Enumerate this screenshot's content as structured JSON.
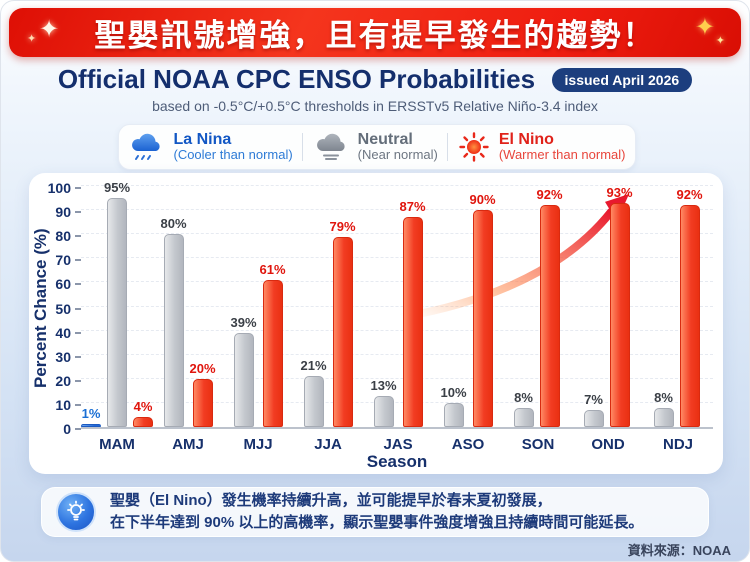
{
  "banner": {
    "title": "聖嬰訊號增強，且有提早發生的趨勢！",
    "sparkle": "✦"
  },
  "header": {
    "title": "Official NOAA CPC ENSO Probabilities",
    "badge": "issued April 2026",
    "subtitle": "based on -0.5°C/+0.5°C thresholds in ERSSTv5 Relative Niño-3.4 index"
  },
  "legend": {
    "items": [
      {
        "icon": "rain-cloud-icon",
        "name": "La Nina",
        "desc": "(Cooler than normal)",
        "color": "#1257c4"
      },
      {
        "icon": "cloud-icon",
        "name": "Neutral",
        "desc": "(Near normal)",
        "color": "#646e7a"
      },
      {
        "icon": "sun-icon",
        "name": "El Nino",
        "desc": "(Warmer than normal)",
        "color": "#e0221a"
      }
    ]
  },
  "chart_data": {
    "type": "bar",
    "title": "Official NOAA CPC ENSO Probabilities",
    "xlabel": "Season",
    "ylabel": "Percent Chance (%)",
    "ylim": [
      0,
      100
    ],
    "ytick_step": 10,
    "grid": "horizontal-dashed",
    "categories": [
      "MAM",
      "AMJ",
      "MJJ",
      "JJA",
      "JAS",
      "ASO",
      "SON",
      "OND",
      "NDJ"
    ],
    "series": [
      {
        "key": "la_nina",
        "name": "La Nina",
        "color": "#2f7ae0",
        "label_color": "#1a6fd4",
        "values": [
          1,
          null,
          null,
          null,
          null,
          null,
          null,
          null,
          null
        ]
      },
      {
        "key": "neutral",
        "name": "Neutral",
        "color": "#c3c7cd",
        "label_color": "#3a3f46",
        "values": [
          95,
          80,
          39,
          21,
          13,
          10,
          8,
          7,
          8
        ]
      },
      {
        "key": "el_nino",
        "name": "El Nino",
        "color": "#f23c22",
        "label_color": "#e0150d",
        "values": [
          4,
          20,
          61,
          79,
          87,
          90,
          92,
          93,
          92
        ]
      }
    ],
    "annotations": [
      {
        "type": "arrow",
        "meaning": "rising El Nino trend",
        "color_start": "#ffab70",
        "color_end": "#e8192e"
      }
    ]
  },
  "footer": {
    "note_line1": "聖嬰（El Nino）發生機率持續升高，並可能提早於春末夏初發展，",
    "note_line2": "在下半年達到 90% 以上的高機率，顯示聖嬰事件強度增強且持續時間可能延長。",
    "source": "資料來源：NOAA"
  },
  "colors": {
    "banner_red": "#ee1c12",
    "navy": "#142f6d",
    "badge_navy": "#1c3e7e",
    "page_bg_bottom": "#c6d6ee"
  }
}
